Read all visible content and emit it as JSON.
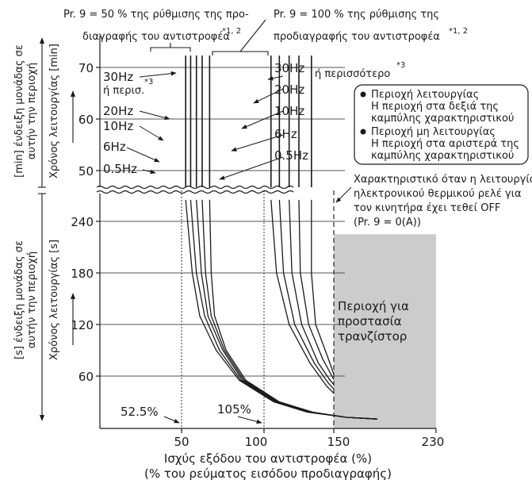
{
  "chart_data": {
    "type": "line",
    "notes": {
      "pr9_50": "Pr. 9 = 50 % της ρύθμισης της προ-",
      "pr9_50_line2": "διαγραφής του αντιστροφέα",
      "pr9_50_sup": "*1, 2",
      "pr9_100": "Pr. 9 = 100 % της ρύθμισης της",
      "pr9_100_line2": "προδιαγραφής του αντιστροφέα",
      "pr9_100_sup": "*1, 2",
      "or_more": "ή περισσότερο",
      "or_more_sup": "*3",
      "or_more_short": "ή περισ.",
      "or_more_short_sup": "*3",
      "relay_off_1": "Χαρακτηριστικό όταν η λειτουργία",
      "relay_off_2": "ηλεκτρονικού θερμικού ρελέ για",
      "relay_off_3": "τον κινητήρα έχει τεθεί OFF",
      "relay_off_4": "(Pr. 9 = 0(A))",
      "pct_52": "52.5%",
      "pct_105": "105%"
    },
    "legend": {
      "item1_title": "Περιοχή λειτουργίας",
      "item1_l2": "Η περιοχή στα δεξιά της",
      "item1_l3": "καμπύλης χαρακτηριστικού",
      "item2_title": "Περιοχή μη λειτουργίας",
      "item2_l2": "Η περιοχή στα αριστερά της",
      "item2_l3": "καμπύλης χαρακτηριστικού"
    },
    "shaded_region": {
      "label_1": "Περιοχή για",
      "label_2": "προστασία",
      "label_3": "τρανζίστορ",
      "x_from": 150,
      "x_to": 230,
      "color": "#cccccc"
    },
    "x_axis": {
      "label_1": "Ισχύς εξόδου του αντιστροφέα (%)",
      "label_2": "(% του ρεύματος εισόδου προδιαγραφής)",
      "ticks": [
        "50",
        "100",
        "150",
        "230"
      ],
      "tick_values": [
        50,
        100,
        150,
        230
      ],
      "range": [
        0,
        230
      ]
    },
    "y_axis_min": {
      "unit": "[min]",
      "outer_1": "[min] ένδειξη μονάδας σε",
      "outer_2": "αυτήν την περιοχή",
      "inner": "Χρόνος λειτουργίας [min]",
      "ticks": [
        "50",
        "60",
        "70"
      ],
      "tick_values": [
        50,
        60,
        70
      ],
      "range": [
        47,
        74
      ]
    },
    "y_axis_s": {
      "unit": "[s]",
      "outer_1": "[s] ένδειξη μονάδας σε",
      "outer_2": "αυτήν την περιοχή",
      "inner": "Χρόνος λειτουργίας [s]",
      "ticks": [
        "60",
        "120",
        "180",
        "240"
      ],
      "tick_values": [
        60,
        120,
        180,
        240
      ],
      "range": [
        0,
        265
      ]
    },
    "series_labels": {
      "left_30": "30Hz",
      "left_20": "20Hz",
      "left_10": "10Hz",
      "left_6": "6Hz",
      "left_05": "0.5Hz",
      "right_30": "30Hz",
      "right_20": "20Hz",
      "right_10": "10Hz",
      "right_6": "6Hz",
      "right_05": "0.5Hz"
    },
    "series": [
      {
        "name": "0.5Hz",
        "group": "Pr. 9 = 50 %",
        "x": [
          52.5,
          56.5,
          61,
          71,
          85,
          107,
          131,
          160,
          184
        ],
        "y_s": [
          265,
          180,
          130,
          90,
          55,
          30,
          18,
          12,
          10
        ],
        "x_min_section": 52.5
      },
      {
        "name": "6Hz",
        "group": "Pr. 9 = 50 %",
        "x": [
          55.5,
          59,
          64,
          73,
          86,
          108,
          132,
          160,
          184
        ],
        "y_s": [
          265,
          180,
          130,
          90,
          55,
          30,
          18,
          12,
          10
        ],
        "x_min_section": 55.5
      },
      {
        "name": "10Hz",
        "group": "Pr. 9 = 50 %",
        "x": [
          59,
          62,
          66,
          75,
          87,
          109,
          133,
          160,
          184
        ],
        "y_s": [
          265,
          180,
          130,
          90,
          55,
          30,
          18,
          12,
          10
        ],
        "x_min_section": 59
      },
      {
        "name": "20Hz",
        "group": "Pr. 9 = 50 %",
        "x": [
          62.5,
          64.5,
          68,
          76,
          88,
          110,
          134,
          160,
          184
        ],
        "y_s": [
          265,
          180,
          130,
          90,
          55,
          30,
          18,
          12,
          10
        ],
        "x_min_section": 62.5
      },
      {
        "name": "30Hz",
        "group": "Pr. 9 = 50 %",
        "x": [
          67,
          68,
          70,
          77,
          89,
          111,
          135,
          160,
          184
        ],
        "y_s": [
          265,
          180,
          130,
          90,
          55,
          30,
          18,
          12,
          10
        ],
        "x_min_section": 67
      },
      {
        "name": "0.5Hz",
        "group": "Pr. 9 = 100 %",
        "x": [
          105,
          109,
          118,
          133,
          145,
          150
        ],
        "y_s": [
          265,
          180,
          120,
          75,
          48,
          40
        ],
        "x_min_section": 105
      },
      {
        "name": "6Hz",
        "group": "Pr. 9 = 100 %",
        "x": [
          111,
          114,
          122,
          136,
          146,
          150
        ],
        "y_s": [
          265,
          180,
          120,
          75,
          52,
          45
        ],
        "x_min_section": 111
      },
      {
        "name": "10Hz",
        "group": "Pr. 9 = 100 %",
        "x": [
          118,
          120,
          127,
          139,
          147,
          150
        ],
        "y_s": [
          265,
          180,
          120,
          75,
          56,
          50
        ],
        "x_min_section": 118
      },
      {
        "name": "20Hz",
        "group": "Pr. 9 = 100 %",
        "x": [
          125,
          126,
          132,
          142,
          148,
          150
        ],
        "y_s": [
          265,
          180,
          120,
          80,
          62,
          56
        ],
        "x_min_section": 125
      },
      {
        "name": "30Hz",
        "group": "Pr. 9 = 100 %",
        "x": [
          134,
          134,
          137,
          145,
          149,
          150
        ],
        "y_s": [
          265,
          180,
          120,
          85,
          67,
          62
        ],
        "x_min_section": 134
      }
    ],
    "grid": true
  }
}
